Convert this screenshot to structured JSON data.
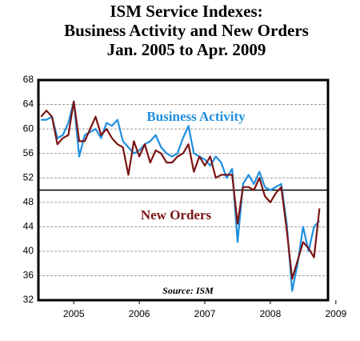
{
  "chart_data": {
    "type": "line",
    "title": [
      "ISM Service Indexes:",
      "Business Activity and New Orders",
      "Jan. 2005 to Apr. 2009"
    ],
    "x": [
      2005,
      2005.083,
      2005.167,
      2005.25,
      2005.333,
      2005.417,
      2005.5,
      2005.583,
      2005.667,
      2005.75,
      2005.833,
      2005.917,
      2006,
      2006.083,
      2006.167,
      2006.25,
      2006.333,
      2006.417,
      2006.5,
      2006.583,
      2006.667,
      2006.75,
      2006.833,
      2006.917,
      2007,
      2007.083,
      2007.167,
      2007.25,
      2007.333,
      2007.417,
      2007.5,
      2007.583,
      2007.667,
      2007.75,
      2007.833,
      2007.917,
      2008,
      2008.083,
      2008.167,
      2008.25,
      2008.333,
      2008.417,
      2008.5,
      2008.583,
      2008.667,
      2008.75,
      2008.833,
      2008.917,
      2009,
      2009.083,
      2009.167,
      2009.25
    ],
    "series": [
      {
        "name": "Business Activity",
        "color": "#1f8fe0",
        "values": [
          61.5,
          61.5,
          62,
          58.5,
          59,
          61,
          64.5,
          55.5,
          59,
          59.5,
          60,
          58.5,
          61,
          60.5,
          61.5,
          58,
          57,
          56,
          56.5,
          57.5,
          58,
          59,
          57,
          56,
          55.5,
          56,
          58.5,
          60.5,
          56,
          55.5,
          55,
          54,
          55.5,
          54.5,
          52,
          53.5,
          41.5,
          51,
          52.5,
          51,
          53,
          50.5,
          50,
          50.5,
          51,
          44.5,
          33.5,
          38,
          44,
          40,
          44,
          45
        ]
      },
      {
        "name": "New Orders",
        "color": "#7a1414",
        "values": [
          62,
          63,
          62,
          57.5,
          58.5,
          59,
          64.5,
          58,
          58,
          60,
          62,
          59,
          60,
          58.5,
          57.5,
          57,
          52.5,
          58,
          55.5,
          57.5,
          54.5,
          56.5,
          56,
          54.5,
          54.5,
          55.5,
          56,
          57.5,
          53,
          55.5,
          54,
          55.5,
          52,
          52.5,
          52.5,
          52.5,
          44.5,
          50.5,
          50.5,
          50,
          52,
          49,
          48,
          49.5,
          50.5,
          43.5,
          35.5,
          38.5,
          41.5,
          40.5,
          39,
          47
        ]
      }
    ],
    "reference_line": 50,
    "annotation": "Source: ISM",
    "xlim": [
      2004.96,
      2009.38
    ],
    "xticks": [
      {
        "value": 2005.5,
        "label": "2005"
      },
      {
        "value": 2006.5,
        "label": "2006"
      },
      {
        "value": 2007.5,
        "label": "2007"
      },
      {
        "value": 2008.5,
        "label": "2008"
      },
      {
        "value": 2009.5,
        "label": "2009"
      }
    ],
    "ylim": [
      32,
      68
    ],
    "yticks": [
      32,
      36,
      40,
      44,
      48,
      52,
      56,
      60,
      64,
      68
    ],
    "grid": true
  }
}
